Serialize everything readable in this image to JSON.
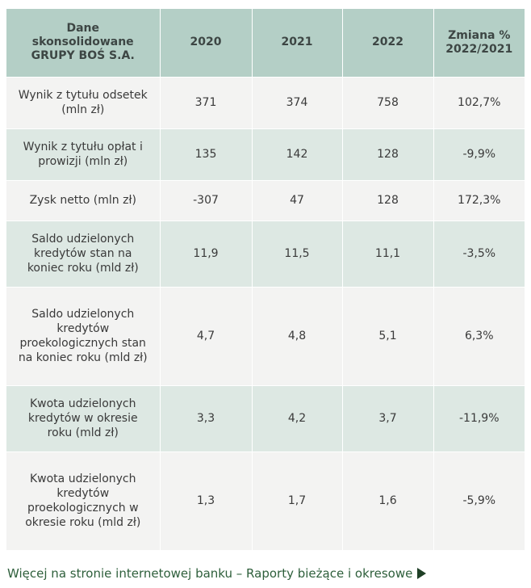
{
  "table": {
    "headers": [
      "Dane skonsolidowane GRUPY BOŚ S.A.",
      "2020",
      "2021",
      "2022",
      "Zmiana % 2022/2021"
    ],
    "rows": [
      [
        "Wynik z tytułu odsetek (mln zł)",
        "371",
        "374",
        "758",
        "102,7%"
      ],
      [
        "Wynik z tytułu opłat i prowizji (mln zł)",
        "135",
        "142",
        "128",
        "-9,9%"
      ],
      [
        "Zysk netto (mln zł)",
        "-307",
        "47",
        "128",
        "172,3%"
      ],
      [
        "Saldo udzielonych kredytów stan na koniec roku (mld zł)",
        "11,9",
        "11,5",
        "11,1",
        "-3,5%"
      ],
      [
        "Saldo udzielonych kredytów proekologicznych stan na koniec roku (mld zł)",
        "4,7",
        "4,8",
        "5,1",
        "6,3%"
      ],
      [
        "Kwota udzielonych kredytów w okresie roku (mld zł)",
        "3,3",
        "4,2",
        "3,7",
        "-11,9%"
      ],
      [
        "Kwota udzielonych kredytów proekologicznych w okresie roku (mld zł)",
        "1,3",
        "1,7",
        "1,6",
        "-5,9%"
      ]
    ]
  },
  "footer": {
    "link_text": "Więcej na stronie internetowej banku – Raporty bieżące i okresowe",
    "icon": "play-arrow-icon"
  },
  "colors": {
    "header_bg": "#b4cfc6",
    "row_light": "#f3f3f2",
    "row_green": "#dde8e3",
    "link": "#2e5f3b"
  }
}
